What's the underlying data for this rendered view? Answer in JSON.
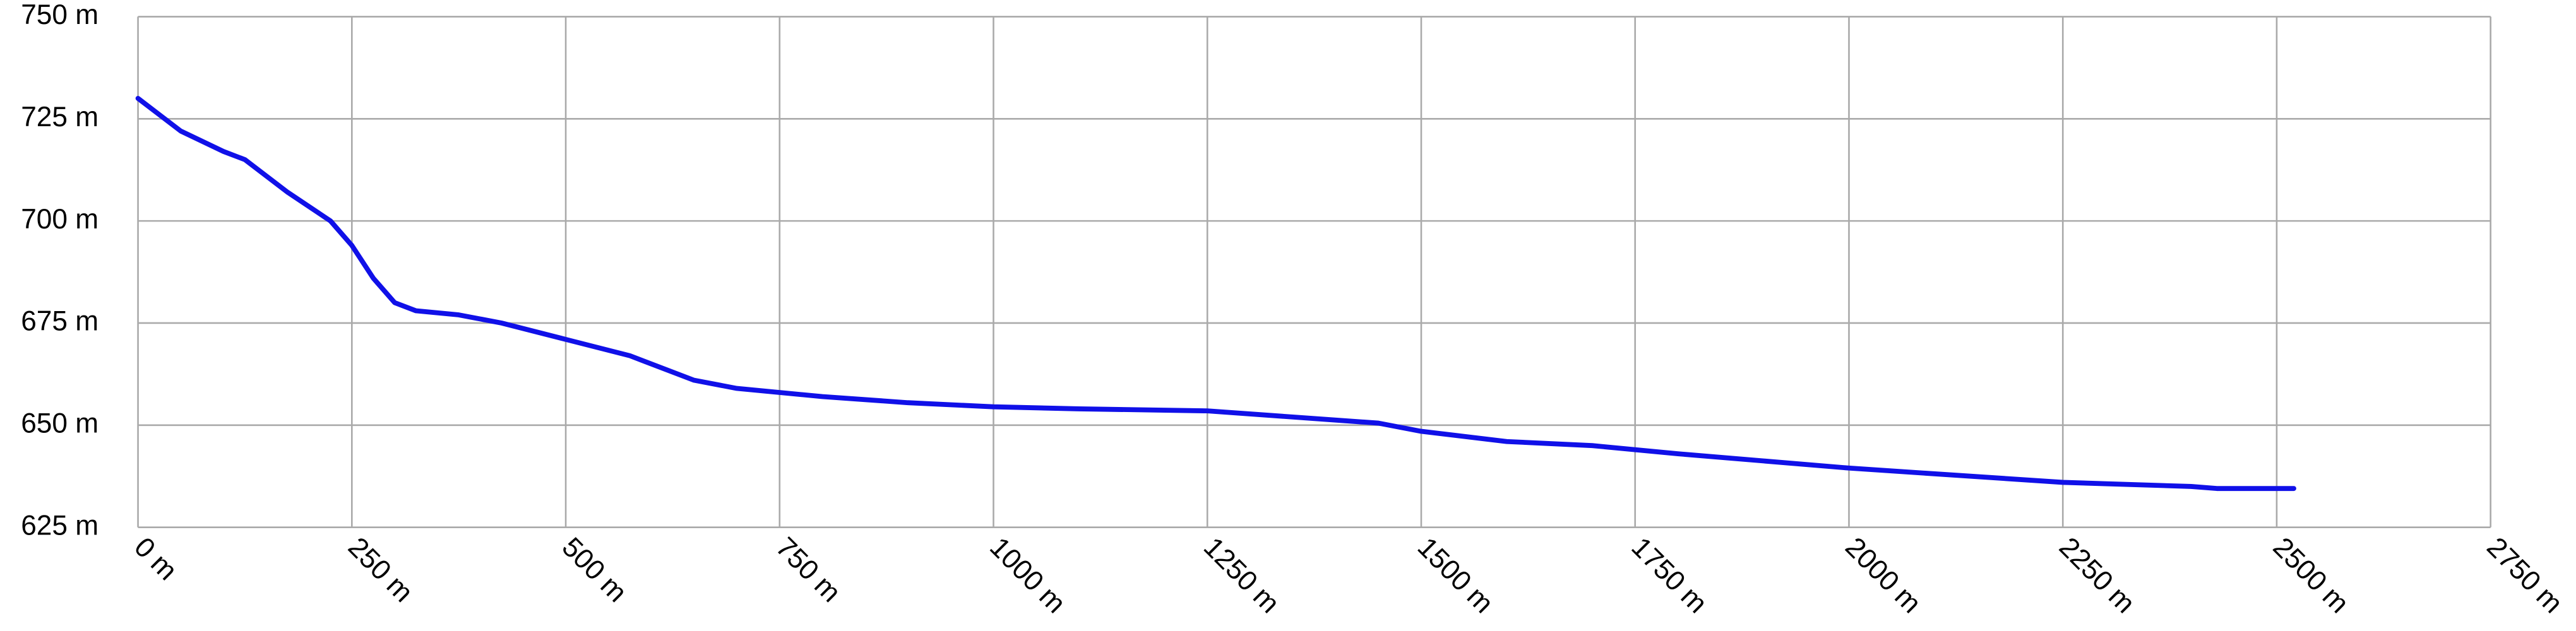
{
  "chart_data": {
    "type": "line",
    "x": [
      0,
      50,
      100,
      125,
      175,
      225,
      250,
      275,
      300,
      325,
      375,
      425,
      500,
      575,
      650,
      700,
      800,
      900,
      1000,
      1100,
      1250,
      1350,
      1450,
      1500,
      1600,
      1700,
      1800,
      2000,
      2250,
      2400,
      2430,
      2520
    ],
    "values": [
      730,
      722,
      717,
      715,
      707,
      700,
      694,
      686,
      680,
      678,
      677,
      675,
      671,
      667,
      661,
      659,
      657,
      655.5,
      654.5,
      654,
      653.5,
      652,
      650.5,
      648.5,
      646,
      645,
      643,
      639.5,
      636,
      635,
      634.5,
      634.5
    ],
    "color": "#1010e8",
    "xlim": [
      0,
      2750
    ],
    "ylim": [
      625,
      750
    ],
    "xticks": [
      {
        "value": 0,
        "label": "0 m"
      },
      {
        "value": 250,
        "label": "250 m"
      },
      {
        "value": 500,
        "label": "500 m"
      },
      {
        "value": 750,
        "label": "750 m"
      },
      {
        "value": 1000,
        "label": "1000 m"
      },
      {
        "value": 1250,
        "label": "1250 m"
      },
      {
        "value": 1500,
        "label": "1500 m"
      },
      {
        "value": 1750,
        "label": "1750 m"
      },
      {
        "value": 2000,
        "label": "2000 m"
      },
      {
        "value": 2250,
        "label": "2250 m"
      },
      {
        "value": 2500,
        "label": "2500 m"
      },
      {
        "value": 2750,
        "label": "2750 m"
      }
    ],
    "yticks": [
      {
        "value": 625,
        "label": "625 m"
      },
      {
        "value": 650,
        "label": "650 m"
      },
      {
        "value": 675,
        "label": "675 m"
      },
      {
        "value": 700,
        "label": "700 m"
      },
      {
        "value": 725,
        "label": "725 m"
      },
      {
        "value": 750,
        "label": "750 m"
      }
    ],
    "grid": true
  }
}
